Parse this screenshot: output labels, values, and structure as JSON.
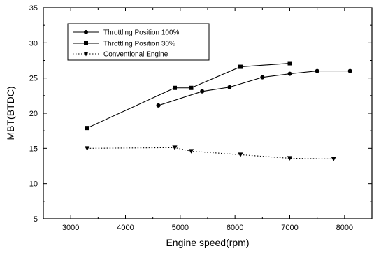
{
  "chart_data": {
    "type": "line",
    "xlabel": "Engine speed(rpm)",
    "ylabel": "MBT(BTDC)",
    "xlim": [
      2500,
      8500
    ],
    "ylim": [
      5,
      35
    ],
    "xticks": [
      3000,
      4000,
      5000,
      6000,
      7000,
      8000
    ],
    "yticks": [
      5,
      10,
      15,
      20,
      25,
      30,
      35
    ],
    "legend_position": "top-left",
    "grid": false,
    "series": [
      {
        "name": "Throttling Position 100%",
        "marker": "circle",
        "line": "solid",
        "x": [
          4600,
          5400,
          5900,
          6500,
          7000,
          7500,
          8100
        ],
        "y": [
          21.1,
          23.1,
          23.7,
          25.1,
          25.6,
          26.0,
          26.0
        ]
      },
      {
        "name": "Throttling Position  30%",
        "marker": "square",
        "line": "solid",
        "x": [
          3300,
          4900,
          5200,
          6100,
          7000
        ],
        "y": [
          17.9,
          23.6,
          23.6,
          26.6,
          27.1
        ]
      },
      {
        "name": "Conventional Engine",
        "marker": "triangle-down",
        "line": "dotted",
        "x": [
          3300,
          4900,
          5200,
          6100,
          7000,
          7800
        ],
        "y": [
          15.0,
          15.1,
          14.6,
          14.1,
          13.6,
          13.5
        ]
      }
    ]
  }
}
